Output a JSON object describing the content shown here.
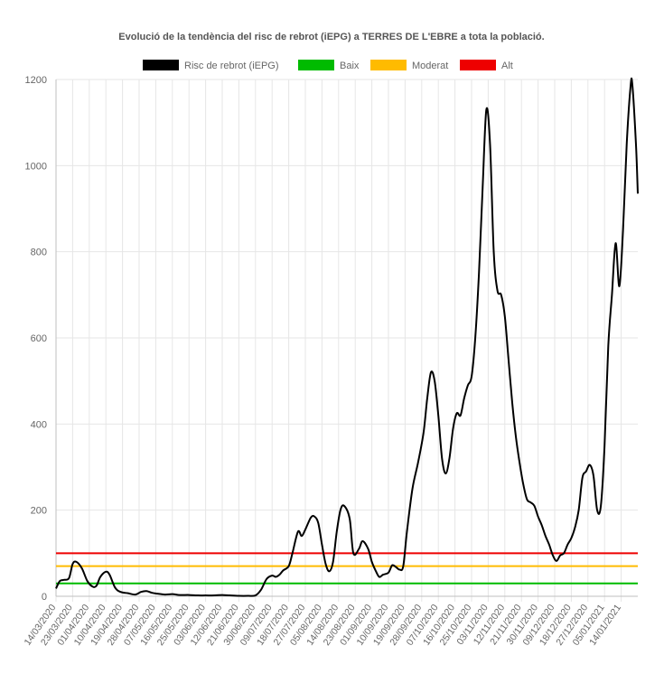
{
  "chart_data": {
    "type": "line",
    "title": "Evolució de la tendència del risc de rebrot (iEPG) a TERRES DE L'EBRE a tota la població.",
    "legend": {
      "placement": "top",
      "entries": [
        {
          "name": "Risc de rebrot (iEPG)",
          "color": "#000000"
        },
        {
          "name": "Baix",
          "color": "#00bb00"
        },
        {
          "name": "Moderat",
          "color": "#ffbb00"
        },
        {
          "name": "Alt",
          "color": "#ee0000"
        }
      ]
    },
    "ylim": [
      0,
      1200
    ],
    "yticks": [
      0,
      200,
      400,
      600,
      800,
      1000,
      1200
    ],
    "xlim": [
      "2020-03-14",
      "2021-01-23"
    ],
    "xticks": [
      "14/03/2020",
      "23/03/2020",
      "01/04/2020",
      "10/04/2020",
      "19/04/2020",
      "28/04/2020",
      "07/05/2020",
      "16/05/2020",
      "25/05/2020",
      "03/06/2020",
      "12/06/2020",
      "21/06/2020",
      "30/06/2020",
      "09/07/2020",
      "18/07/2020",
      "27/07/2020",
      "05/08/2020",
      "14/08/2020",
      "23/08/2020",
      "01/09/2020",
      "10/09/2020",
      "19/09/2020",
      "28/09/2020",
      "07/10/2020",
      "16/10/2020",
      "25/10/2020",
      "03/11/2020",
      "12/11/2020",
      "21/11/2020",
      "30/11/2020",
      "09/12/2020",
      "18/12/2020",
      "27/12/2020",
      "05/01/2021",
      "14/01/2021"
    ],
    "grid": true,
    "thresholds": [
      {
        "name": "Baix",
        "value": 30,
        "color": "#00bb00"
      },
      {
        "name": "Moderat",
        "value": 70,
        "color": "#ffbb00"
      },
      {
        "name": "Alt",
        "value": 100,
        "color": "#ee0000"
      }
    ],
    "series": [
      {
        "name": "Risc de rebrot (iEPG)",
        "color": "#000000",
        "points": [
          [
            "2020-03-14",
            18
          ],
          [
            "2020-03-16",
            35
          ],
          [
            "2020-03-18",
            38
          ],
          [
            "2020-03-21",
            42
          ],
          [
            "2020-03-23",
            75
          ],
          [
            "2020-03-25",
            80
          ],
          [
            "2020-03-28",
            65
          ],
          [
            "2020-03-31",
            35
          ],
          [
            "2020-04-03",
            22
          ],
          [
            "2020-04-05",
            25
          ],
          [
            "2020-04-07",
            45
          ],
          [
            "2020-04-10",
            57
          ],
          [
            "2020-04-12",
            50
          ],
          [
            "2020-04-15",
            20
          ],
          [
            "2020-04-18",
            10
          ],
          [
            "2020-04-22",
            7
          ],
          [
            "2020-04-26",
            4
          ],
          [
            "2020-04-29",
            10
          ],
          [
            "2020-05-02",
            12
          ],
          [
            "2020-05-05",
            8
          ],
          [
            "2020-05-08",
            6
          ],
          [
            "2020-05-12",
            4
          ],
          [
            "2020-05-16",
            5
          ],
          [
            "2020-05-20",
            3
          ],
          [
            "2020-05-25",
            3
          ],
          [
            "2020-05-30",
            2
          ],
          [
            "2020-06-03",
            2
          ],
          [
            "2020-06-08",
            2
          ],
          [
            "2020-06-12",
            3
          ],
          [
            "2020-06-16",
            2
          ],
          [
            "2020-06-21",
            1
          ],
          [
            "2020-06-26",
            1
          ],
          [
            "2020-06-30",
            2
          ],
          [
            "2020-07-03",
            15
          ],
          [
            "2020-07-06",
            40
          ],
          [
            "2020-07-09",
            48
          ],
          [
            "2020-07-11",
            45
          ],
          [
            "2020-07-13",
            50
          ],
          [
            "2020-07-15",
            60
          ],
          [
            "2020-07-18",
            70
          ],
          [
            "2020-07-20",
            100
          ],
          [
            "2020-07-23",
            150
          ],
          [
            "2020-07-25",
            140
          ],
          [
            "2020-07-27",
            155
          ],
          [
            "2020-07-30",
            183
          ],
          [
            "2020-08-01",
            185
          ],
          [
            "2020-08-03",
            170
          ],
          [
            "2020-08-05",
            120
          ],
          [
            "2020-08-07",
            75
          ],
          [
            "2020-08-09",
            58
          ],
          [
            "2020-08-11",
            80
          ],
          [
            "2020-08-13",
            150
          ],
          [
            "2020-08-15",
            200
          ],
          [
            "2020-08-17",
            210
          ],
          [
            "2020-08-20",
            180
          ],
          [
            "2020-08-22",
            100
          ],
          [
            "2020-08-25",
            110
          ],
          [
            "2020-08-27",
            128
          ],
          [
            "2020-08-30",
            110
          ],
          [
            "2020-09-01",
            80
          ],
          [
            "2020-09-03",
            60
          ],
          [
            "2020-09-05",
            45
          ],
          [
            "2020-09-07",
            50
          ],
          [
            "2020-09-10",
            55
          ],
          [
            "2020-09-12",
            72
          ],
          [
            "2020-09-14",
            68
          ],
          [
            "2020-09-16",
            62
          ],
          [
            "2020-09-18",
            70
          ],
          [
            "2020-09-20",
            150
          ],
          [
            "2020-09-23",
            250
          ],
          [
            "2020-09-26",
            310
          ],
          [
            "2020-09-29",
            380
          ],
          [
            "2020-10-01",
            460
          ],
          [
            "2020-10-03",
            520
          ],
          [
            "2020-10-05",
            500
          ],
          [
            "2020-10-07",
            420
          ],
          [
            "2020-10-09",
            320
          ],
          [
            "2020-10-11",
            285
          ],
          [
            "2020-10-13",
            320
          ],
          [
            "2020-10-15",
            390
          ],
          [
            "2020-10-17",
            425
          ],
          [
            "2020-10-19",
            420
          ],
          [
            "2020-10-21",
            460
          ],
          [
            "2020-10-23",
            490
          ],
          [
            "2020-10-25",
            510
          ],
          [
            "2020-10-27",
            600
          ],
          [
            "2020-10-29",
            750
          ],
          [
            "2020-10-31",
            950
          ],
          [
            "2020-11-02",
            1130
          ],
          [
            "2020-11-04",
            1050
          ],
          [
            "2020-11-06",
            800
          ],
          [
            "2020-11-08",
            710
          ],
          [
            "2020-11-10",
            700
          ],
          [
            "2020-11-12",
            650
          ],
          [
            "2020-11-14",
            550
          ],
          [
            "2020-11-16",
            450
          ],
          [
            "2020-11-18",
            370
          ],
          [
            "2020-11-20",
            310
          ],
          [
            "2020-11-22",
            260
          ],
          [
            "2020-11-24",
            225
          ],
          [
            "2020-11-26",
            218
          ],
          [
            "2020-11-28",
            210
          ],
          [
            "2020-11-30",
            185
          ],
          [
            "2020-12-02",
            165
          ],
          [
            "2020-12-04",
            140
          ],
          [
            "2020-12-06",
            120
          ],
          [
            "2020-12-08",
            95
          ],
          [
            "2020-12-10",
            82
          ],
          [
            "2020-12-12",
            95
          ],
          [
            "2020-12-14",
            100
          ],
          [
            "2020-12-16",
            120
          ],
          [
            "2020-12-18",
            135
          ],
          [
            "2020-12-20",
            160
          ],
          [
            "2020-12-22",
            200
          ],
          [
            "2020-12-24",
            275
          ],
          [
            "2020-12-26",
            290
          ],
          [
            "2020-12-28",
            305
          ],
          [
            "2020-12-30",
            280
          ],
          [
            "2021-01-01",
            200
          ],
          [
            "2021-01-03",
            210
          ],
          [
            "2021-01-05",
            350
          ],
          [
            "2021-01-07",
            580
          ],
          [
            "2021-01-09",
            700
          ],
          [
            "2021-01-11",
            820
          ],
          [
            "2021-01-13",
            720
          ],
          [
            "2021-01-15",
            850
          ],
          [
            "2021-01-17",
            1050
          ],
          [
            "2021-01-19",
            1180
          ],
          [
            "2021-01-20",
            1190
          ],
          [
            "2021-01-22",
            1050
          ],
          [
            "2021-01-23",
            935
          ]
        ]
      }
    ]
  }
}
